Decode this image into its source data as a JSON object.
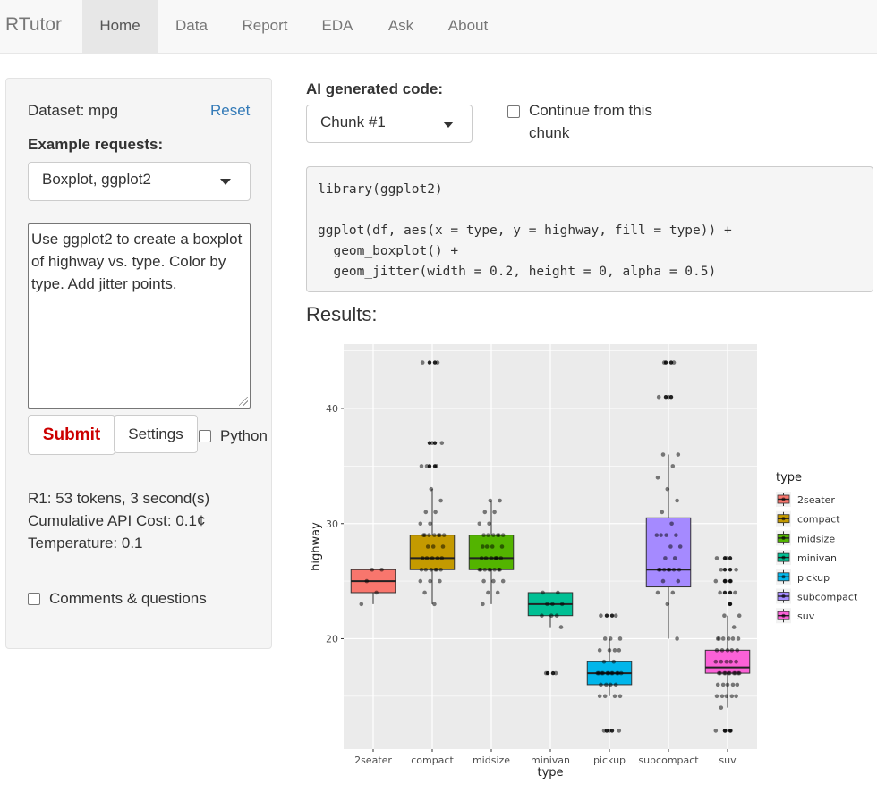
{
  "navbar": {
    "brand": "RTutor",
    "items": [
      {
        "label": "Home",
        "active": true
      },
      {
        "label": "Data",
        "active": false
      },
      {
        "label": "Report",
        "active": false
      },
      {
        "label": "EDA",
        "active": false
      },
      {
        "label": "Ask",
        "active": false
      },
      {
        "label": "About",
        "active": false
      }
    ]
  },
  "sidebar": {
    "dataset_label": "Dataset: mpg",
    "reset_label": "Reset",
    "example_requests_label": "Example requests:",
    "example_selected": "Boxplot, ggplot2",
    "request_text": "Use ggplot2 to create a boxplot of highway vs. type. Color by type. Add jitter points.",
    "submit_label": "Submit",
    "settings_label": "Settings",
    "python_label": "Python",
    "stats": {
      "tokens": "R1: 53 tokens, 3 second(s)",
      "cost": "Cumulative API Cost: 0.1¢",
      "temperature": "Temperature: 0.1"
    },
    "comments_label": "Comments & questions"
  },
  "main": {
    "code_label": "AI generated code:",
    "chunk_selected": "Chunk #1",
    "continue_label_line1": "Continue from this",
    "continue_label_line2": "chunk",
    "code_lines": [
      "library(ggplot2)",
      "",
      "ggplot(df, aes(x = type, y = highway, fill = type)) +",
      "  geom_boxplot() +",
      "  geom_jitter(width = 0.2, height = 0, alpha = 0.5)"
    ],
    "results_label": "Results:"
  },
  "colors": {
    "accent_link": "#337ab7",
    "submit_text": "#cc0000",
    "plot_panel": "#ebebeb"
  },
  "chart_data": {
    "type": "boxplot",
    "xlabel": "type",
    "ylabel": "highway",
    "ylim": [
      10.4,
      45.6
    ],
    "yticks": [
      20,
      30,
      40
    ],
    "grid": true,
    "legend_title": "type",
    "legend_position": "right",
    "categories": [
      "2seater",
      "compact",
      "midsize",
      "minivan",
      "pickup",
      "subcompact",
      "suv"
    ],
    "colors": [
      "#F8766D",
      "#C49A00",
      "#53B400",
      "#00C094",
      "#00B6EB",
      "#A58AFF",
      "#FB61D7"
    ],
    "boxes": [
      {
        "min": 23,
        "q1": 24,
        "median": 25,
        "q3": 26,
        "max": 26,
        "outliers": []
      },
      {
        "min": 23,
        "q1": 26,
        "median": 27,
        "q3": 29,
        "max": 33,
        "outliers": [
          35,
          35,
          37,
          37,
          44,
          44
        ]
      },
      {
        "min": 23,
        "q1": 26,
        "median": 27,
        "q3": 29,
        "max": 32,
        "outliers": []
      },
      {
        "min": 21,
        "q1": 22,
        "median": 23,
        "q3": 24,
        "max": 24,
        "outliers": [
          17,
          17
        ]
      },
      {
        "min": 15,
        "q1": 16,
        "median": 17,
        "q3": 18,
        "max": 20,
        "outliers": [
          12,
          12,
          12,
          22,
          22
        ]
      },
      {
        "min": 20,
        "q1": 24.5,
        "median": 26,
        "q3": 30.5,
        "max": 36,
        "outliers": [
          41,
          41,
          44,
          44
        ]
      },
      {
        "min": 14,
        "q1": 17,
        "median": 17.5,
        "q3": 19,
        "max": 22,
        "outliers": [
          12,
          12,
          12,
          23,
          24,
          24,
          25,
          25,
          25,
          26,
          26,
          27,
          27
        ]
      }
    ],
    "points": [
      [
        23,
        24,
        25,
        26,
        26
      ],
      [
        23,
        24,
        25,
        25,
        25,
        26,
        26,
        26,
        26,
        26,
        26,
        27,
        27,
        27,
        27,
        27,
        28,
        28,
        28,
        29,
        29,
        29,
        29,
        29,
        29,
        29,
        30,
        30,
        31,
        31,
        32,
        33,
        35,
        35,
        35,
        37,
        37,
        44,
        44
      ],
      [
        23,
        24,
        24,
        25,
        25,
        25,
        26,
        26,
        26,
        26,
        26,
        26,
        26,
        26,
        27,
        27,
        27,
        27,
        27,
        27,
        28,
        28,
        28,
        28,
        29,
        29,
        29,
        29,
        29,
        29,
        30,
        30,
        31,
        31,
        32,
        32
      ],
      [
        17,
        17,
        21,
        22,
        22,
        22,
        23,
        23,
        23,
        24,
        24
      ],
      [
        12,
        12,
        12,
        15,
        15,
        15,
        15,
        16,
        16,
        16,
        16,
        17,
        17,
        17,
        17,
        17,
        17,
        17,
        17,
        17,
        17,
        17,
        18,
        18,
        19,
        19,
        19,
        19,
        20,
        20,
        20,
        22,
        22
      ],
      [
        20,
        23,
        24,
        24,
        25,
        25,
        26,
        26,
        26,
        26,
        26,
        26,
        26,
        27,
        27,
        28,
        28,
        29,
        29,
        29,
        29,
        30,
        31,
        32,
        33,
        34,
        35,
        36,
        36,
        41,
        41,
        44,
        44
      ],
      [
        12,
        12,
        12,
        14,
        15,
        15,
        15,
        15,
        15,
        16,
        16,
        16,
        16,
        16,
        17,
        17,
        17,
        17,
        17,
        17,
        17,
        17,
        17,
        17,
        18,
        18,
        18,
        18,
        18,
        19,
        19,
        19,
        19,
        19,
        20,
        20,
        20,
        20,
        20,
        20,
        21,
        22,
        22,
        23,
        24,
        24,
        25,
        25,
        25,
        26,
        26,
        27,
        27
      ]
    ]
  }
}
